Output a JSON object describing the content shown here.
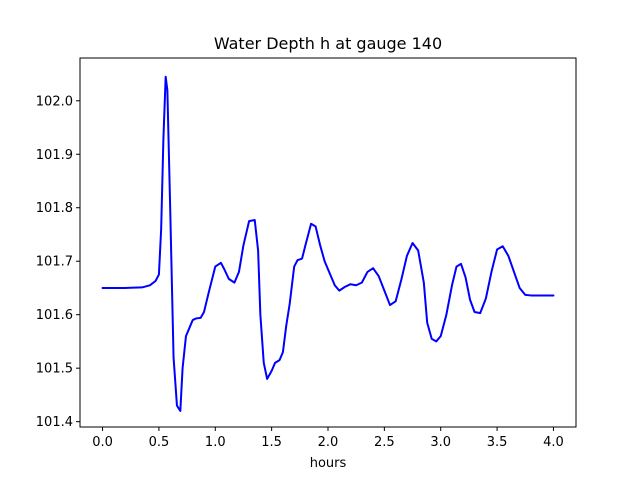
{
  "chart_data": {
    "type": "line",
    "title": "Water Depth h at gauge 140",
    "xlabel": "hours",
    "ylabel": "",
    "xlim": [
      -0.2,
      4.2
    ],
    "ylim": [
      101.39,
      102.08
    ],
    "x_ticks": [
      0.0,
      0.5,
      1.0,
      1.5,
      2.0,
      2.5,
      3.0,
      3.5,
      4.0
    ],
    "x_tick_labels": [
      "0.0",
      "0.5",
      "1.0",
      "1.5",
      "2.0",
      "2.5",
      "3.0",
      "3.5",
      "4.0"
    ],
    "y_ticks": [
      101.4,
      101.5,
      101.6,
      101.7,
      101.8,
      101.9,
      102.0
    ],
    "y_tick_labels": [
      "101.4",
      "101.5",
      "101.6",
      "101.7",
      "101.8",
      "101.9",
      "102.0"
    ],
    "grid": false,
    "series": [
      {
        "color": "#0000ff",
        "x": [
          0.0,
          0.2,
          0.35,
          0.42,
          0.47,
          0.5,
          0.52,
          0.54,
          0.56,
          0.575,
          0.6,
          0.63,
          0.66,
          0.69,
          0.71,
          0.74,
          0.77,
          0.8,
          0.83,
          0.87,
          0.9,
          0.94,
          1.0,
          1.05,
          1.08,
          1.12,
          1.17,
          1.21,
          1.25,
          1.3,
          1.35,
          1.38,
          1.4,
          1.43,
          1.46,
          1.5,
          1.53,
          1.57,
          1.6,
          1.63,
          1.66,
          1.7,
          1.73,
          1.77,
          1.8,
          1.85,
          1.89,
          1.93,
          1.97,
          2.02,
          2.06,
          2.1,
          2.15,
          2.2,
          2.25,
          2.3,
          2.35,
          2.4,
          2.45,
          2.5,
          2.55,
          2.6,
          2.65,
          2.7,
          2.75,
          2.8,
          2.85,
          2.88,
          2.92,
          2.96,
          3.0,
          3.05,
          3.1,
          3.14,
          3.18,
          3.22,
          3.26,
          3.3,
          3.35,
          3.4,
          3.45,
          3.5,
          3.55,
          3.6,
          3.65,
          3.7,
          3.75,
          3.8,
          3.85,
          3.9,
          3.95,
          4.0
        ],
        "y": [
          101.65,
          101.65,
          101.651,
          101.655,
          101.663,
          101.675,
          101.76,
          101.93,
          102.045,
          102.02,
          101.8,
          101.52,
          101.43,
          101.42,
          101.5,
          101.56,
          101.575,
          101.59,
          101.593,
          101.594,
          101.605,
          101.64,
          101.69,
          101.697,
          101.685,
          101.667,
          101.66,
          101.68,
          101.73,
          101.775,
          101.777,
          101.72,
          101.6,
          101.51,
          101.48,
          101.495,
          101.51,
          101.515,
          101.53,
          101.58,
          101.62,
          101.69,
          101.702,
          101.705,
          101.73,
          101.77,
          101.765,
          101.73,
          101.7,
          101.675,
          101.655,
          101.645,
          101.652,
          101.657,
          101.655,
          101.66,
          101.68,
          101.687,
          101.672,
          101.645,
          101.618,
          101.625,
          101.665,
          101.71,
          101.734,
          101.72,
          101.66,
          101.585,
          101.555,
          101.55,
          101.56,
          101.6,
          101.655,
          101.69,
          101.695,
          101.67,
          101.628,
          101.605,
          101.603,
          101.63,
          101.68,
          101.722,
          101.728,
          101.71,
          101.68,
          101.65,
          101.637,
          101.636,
          101.636,
          101.636,
          101.636,
          101.636
        ]
      }
    ]
  }
}
